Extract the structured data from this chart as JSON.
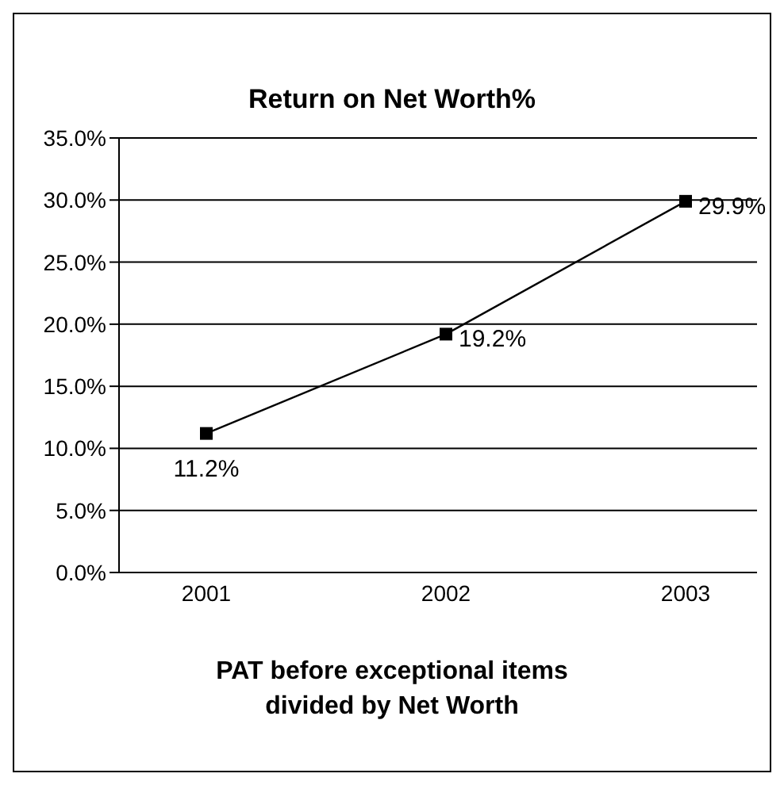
{
  "chart_data": {
    "type": "line",
    "title": "Return on Net Worth%",
    "xlabel": "PAT before exceptional items divided by Net Worth",
    "categories": [
      "2001",
      "2002",
      "2003"
    ],
    "series": [
      {
        "color": "#000000",
        "values": [
          11.2,
          19.2,
          29.9
        ],
        "value_labels": [
          "11.2%",
          "19.2%",
          "29.9%"
        ]
      }
    ],
    "ylim": [
      0,
      35
    ],
    "yticks": [
      {
        "value": 0,
        "label": "0.0%"
      },
      {
        "value": 5,
        "label": "5.0%"
      },
      {
        "value": 10,
        "label": "10.0%"
      },
      {
        "value": 15,
        "label": "15.0%"
      },
      {
        "value": 20,
        "label": "20.0%"
      },
      {
        "value": 25,
        "label": "25.0%"
      },
      {
        "value": 30,
        "label": "30.0%"
      },
      {
        "value": 35,
        "label": "35.0%"
      }
    ],
    "grid": "y",
    "marker": "square",
    "line_style": "solid"
  }
}
